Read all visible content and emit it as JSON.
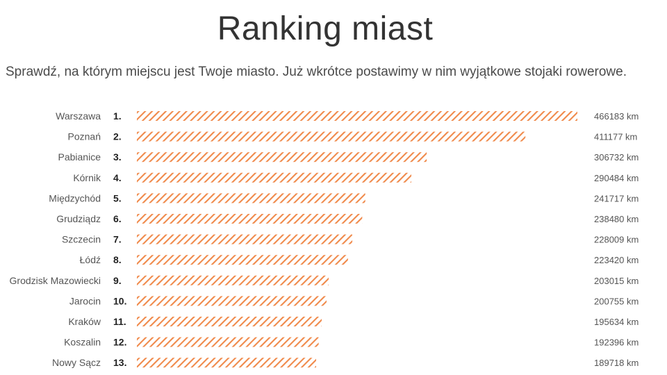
{
  "header": {
    "title": "Ranking miast",
    "subtitle": "Sprawdź, na którym miejscu jest Twoje miasto. Już wkrótce postawimy w nim wyjątkowe stojaki rowerowe."
  },
  "colors": {
    "bar_stripe": "#f08a4b",
    "bar_background": "#ffffff"
  },
  "chart_data": {
    "type": "bar",
    "orientation": "horizontal",
    "unit": "km",
    "title": "Ranking miast",
    "grid": false,
    "categories": [
      "Warszawa",
      "Poznań",
      "Pabianice",
      "Kórnik",
      "Międzychód",
      "Grudziądz",
      "Szczecin",
      "Łódź",
      "Grodzisk Mazowiecki",
      "Jarocin",
      "Kraków",
      "Koszalin",
      "Nowy Sącz"
    ],
    "ranks": [
      "1.",
      "2.",
      "3.",
      "4.",
      "5.",
      "6.",
      "7.",
      "8.",
      "9.",
      "10.",
      "11.",
      "12.",
      "13."
    ],
    "values": [
      466183,
      411177,
      306732,
      290484,
      241717,
      238480,
      228009,
      223420,
      203015,
      200755,
      195634,
      192396,
      189718
    ],
    "value_labels": [
      "466183 km",
      "411177 km",
      "306732 km",
      "290484 km",
      "241717 km",
      "238480 km",
      "228009 km",
      "223420 km",
      "203015 km",
      "200755 km",
      "195634 km",
      "192396 km",
      "189718 km"
    ]
  }
}
